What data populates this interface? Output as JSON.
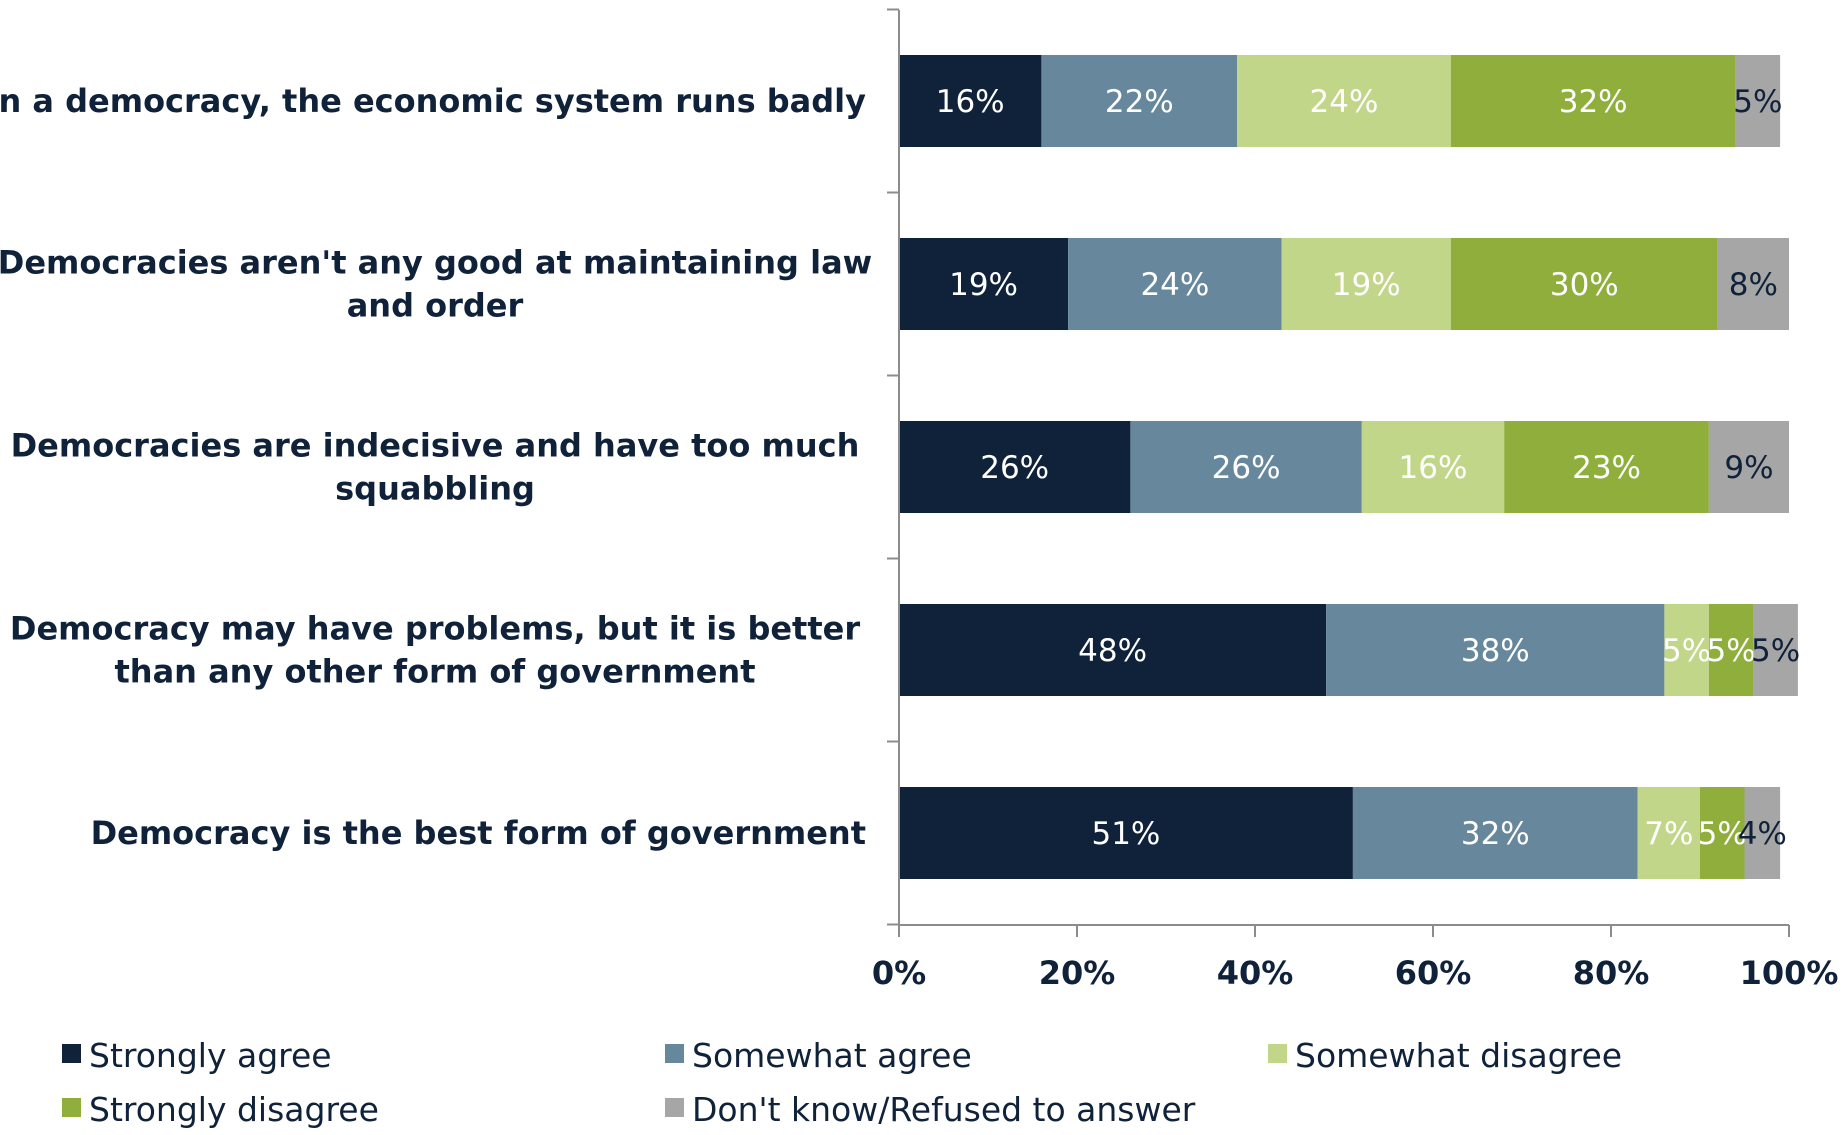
{
  "chart_data": {
    "type": "bar",
    "orientation": "horizontal",
    "stacked": "percent",
    "categories": [
      [
        "In a democracy, the economic system runs badly"
      ],
      [
        "Democracies aren't any good at maintaining law",
        "and order"
      ],
      [
        "Democracies are indecisive and have too much",
        "squabbling"
      ],
      [
        "Democracy may have problems, but it is better",
        "than any other form of government"
      ],
      [
        "Democracy is the best form of government"
      ]
    ],
    "series": [
      {
        "name": "Strongly agree",
        "color": "#0f2239",
        "text_color": "#ffffff",
        "values": [
          16,
          19,
          26,
          48,
          51
        ]
      },
      {
        "name": "Somewhat agree",
        "color": "#67889c",
        "text_color": "#ffffff",
        "values": [
          22,
          24,
          26,
          38,
          32
        ]
      },
      {
        "name": "Somewhat disagree",
        "color": "#c2d689",
        "text_color": "#ffffff",
        "values": [
          24,
          19,
          16,
          5,
          7
        ]
      },
      {
        "name": "Strongly disagree",
        "color": "#8fae3c",
        "text_color": "#ffffff",
        "values": [
          32,
          30,
          23,
          5,
          5
        ]
      },
      {
        "name": "Don't know/Refused to answer",
        "color": "#a6a6a6",
        "text_color": "#0f2239",
        "values": [
          5,
          8,
          9,
          5,
          4
        ]
      }
    ],
    "value_suffix": "%",
    "xlim": [
      0,
      100
    ],
    "xticks": [
      "0%",
      "20%",
      "40%",
      "60%",
      "80%",
      "100%"
    ],
    "legend_position": "bottom",
    "grid": false
  }
}
